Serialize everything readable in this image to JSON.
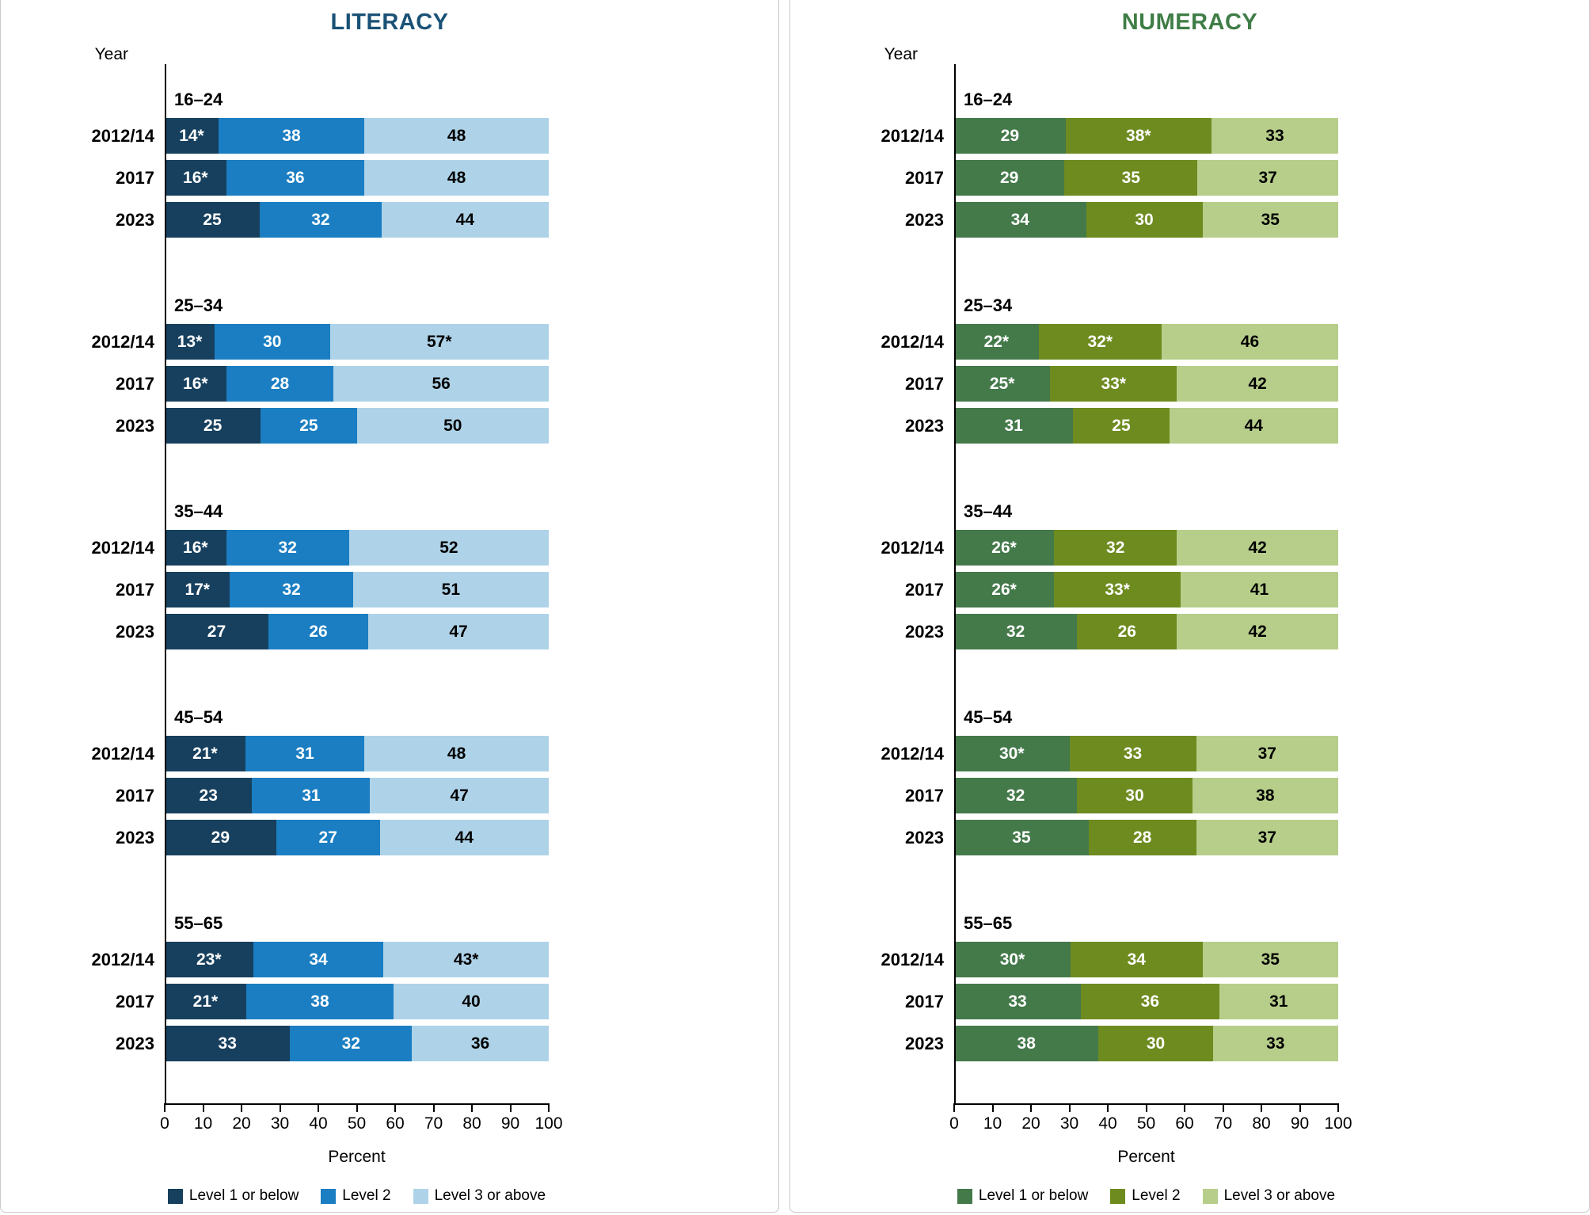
{
  "chart_data": [
    {
      "type": "bar",
      "orientation": "horizontal",
      "stacked": true,
      "title": "LITERACY",
      "title_color": "#1a5276",
      "xlabel": "Percent",
      "ylabel": "Year",
      "xlim": [
        0,
        100
      ],
      "xticks": [
        "0",
        "10",
        "20",
        "30",
        "40",
        "50",
        "60",
        "70",
        "80",
        "90",
        "100"
      ],
      "grid": false,
      "legend_position": "bottom",
      "series_names": [
        "Level 1 or below",
        "Level 2",
        "Level 3 or above"
      ],
      "series_colors": [
        "#17405e",
        "#1b7ec2",
        "#aed3e8"
      ],
      "label_colors": [
        "#ffffff",
        "#ffffff",
        "#000000"
      ],
      "groups": [
        {
          "age": "16–24",
          "rows": [
            {
              "year": "2012/14",
              "values": [
                14,
                38,
                48
              ],
              "labels": [
                "14*",
                "38",
                "48"
              ]
            },
            {
              "year": "2017",
              "values": [
                16,
                36,
                48
              ],
              "labels": [
                "16*",
                "36",
                "48"
              ]
            },
            {
              "year": "2023",
              "values": [
                25,
                32,
                44
              ],
              "labels": [
                "25",
                "32",
                "44"
              ]
            }
          ]
        },
        {
          "age": "25–34",
          "rows": [
            {
              "year": "2012/14",
              "values": [
                13,
                30,
                57
              ],
              "labels": [
                "13*",
                "30",
                "57*"
              ]
            },
            {
              "year": "2017",
              "values": [
                16,
                28,
                56
              ],
              "labels": [
                "16*",
                "28",
                "56"
              ]
            },
            {
              "year": "2023",
              "values": [
                25,
                25,
                50
              ],
              "labels": [
                "25",
                "25",
                "50"
              ]
            }
          ]
        },
        {
          "age": "35–44",
          "rows": [
            {
              "year": "2012/14",
              "values": [
                16,
                32,
                52
              ],
              "labels": [
                "16*",
                "32",
                "52"
              ]
            },
            {
              "year": "2017",
              "values": [
                17,
                32,
                51
              ],
              "labels": [
                "17*",
                "32",
                "51"
              ]
            },
            {
              "year": "2023",
              "values": [
                27,
                26,
                47
              ],
              "labels": [
                "27",
                "26",
                "47"
              ]
            }
          ]
        },
        {
          "age": "45–54",
          "rows": [
            {
              "year": "2012/14",
              "values": [
                21,
                31,
                48
              ],
              "labels": [
                "21*",
                "31",
                "48"
              ]
            },
            {
              "year": "2017",
              "values": [
                23,
                31,
                47
              ],
              "labels": [
                "23",
                "31",
                "47"
              ]
            },
            {
              "year": "2023",
              "values": [
                29,
                27,
                44
              ],
              "labels": [
                "29",
                "27",
                "44"
              ]
            }
          ]
        },
        {
          "age": "55–65",
          "rows": [
            {
              "year": "2012/14",
              "values": [
                23,
                34,
                43
              ],
              "labels": [
                "23*",
                "34",
                "43*"
              ]
            },
            {
              "year": "2017",
              "values": [
                21,
                38,
                40
              ],
              "labels": [
                "21*",
                "38",
                "40"
              ]
            },
            {
              "year": "2023",
              "values": [
                33,
                32,
                36
              ],
              "labels": [
                "33",
                "32",
                "36"
              ]
            }
          ]
        }
      ]
    },
    {
      "type": "bar",
      "orientation": "horizontal",
      "stacked": true,
      "title": "NUMERACY",
      "title_color": "#3f7d46",
      "xlabel": "Percent",
      "ylabel": "Year",
      "xlim": [
        0,
        100
      ],
      "xticks": [
        "0",
        "10",
        "20",
        "30",
        "40",
        "50",
        "60",
        "70",
        "80",
        "90",
        "100"
      ],
      "grid": false,
      "legend_position": "bottom",
      "series_names": [
        "Level 1 or below",
        "Level 2",
        "Level 3 or above"
      ],
      "series_colors": [
        "#44794a",
        "#6e8b1f",
        "#b7ce8a"
      ],
      "label_colors": [
        "#ffffff",
        "#ffffff",
        "#000000"
      ],
      "groups": [
        {
          "age": "16–24",
          "rows": [
            {
              "year": "2012/14",
              "values": [
                29,
                38,
                33
              ],
              "labels": [
                "29",
                "38*",
                "33"
              ]
            },
            {
              "year": "2017",
              "values": [
                29,
                35,
                37
              ],
              "labels": [
                "29",
                "35",
                "37"
              ]
            },
            {
              "year": "2023",
              "values": [
                34,
                30,
                35
              ],
              "labels": [
                "34",
                "30",
                "35"
              ]
            }
          ]
        },
        {
          "age": "25–34",
          "rows": [
            {
              "year": "2012/14",
              "values": [
                22,
                32,
                46
              ],
              "labels": [
                "22*",
                "32*",
                "46"
              ]
            },
            {
              "year": "2017",
              "values": [
                25,
                33,
                42
              ],
              "labels": [
                "25*",
                "33*",
                "42"
              ]
            },
            {
              "year": "2023",
              "values": [
                31,
                25,
                44
              ],
              "labels": [
                "31",
                "25",
                "44"
              ]
            }
          ]
        },
        {
          "age": "35–44",
          "rows": [
            {
              "year": "2012/14",
              "values": [
                26,
                32,
                42
              ],
              "labels": [
                "26*",
                "32",
                "42"
              ]
            },
            {
              "year": "2017",
              "values": [
                26,
                33,
                41
              ],
              "labels": [
                "26*",
                "33*",
                "41"
              ]
            },
            {
              "year": "2023",
              "values": [
                32,
                26,
                42
              ],
              "labels": [
                "32",
                "26",
                "42"
              ]
            }
          ]
        },
        {
          "age": "45–54",
          "rows": [
            {
              "year": "2012/14",
              "values": [
                30,
                33,
                37
              ],
              "labels": [
                "30*",
                "33",
                "37"
              ]
            },
            {
              "year": "2017",
              "values": [
                32,
                30,
                38
              ],
              "labels": [
                "32",
                "30",
                "38"
              ]
            },
            {
              "year": "2023",
              "values": [
                35,
                28,
                37
              ],
              "labels": [
                "35",
                "28",
                "37"
              ]
            }
          ]
        },
        {
          "age": "55–65",
          "rows": [
            {
              "year": "2012/14",
              "values": [
                30,
                34,
                35
              ],
              "labels": [
                "30*",
                "34",
                "35"
              ]
            },
            {
              "year": "2017",
              "values": [
                33,
                36,
                31
              ],
              "labels": [
                "33",
                "36",
                "31"
              ]
            },
            {
              "year": "2023",
              "values": [
                38,
                30,
                33
              ],
              "labels": [
                "38",
                "30",
                "33"
              ]
            }
          ]
        }
      ]
    }
  ]
}
